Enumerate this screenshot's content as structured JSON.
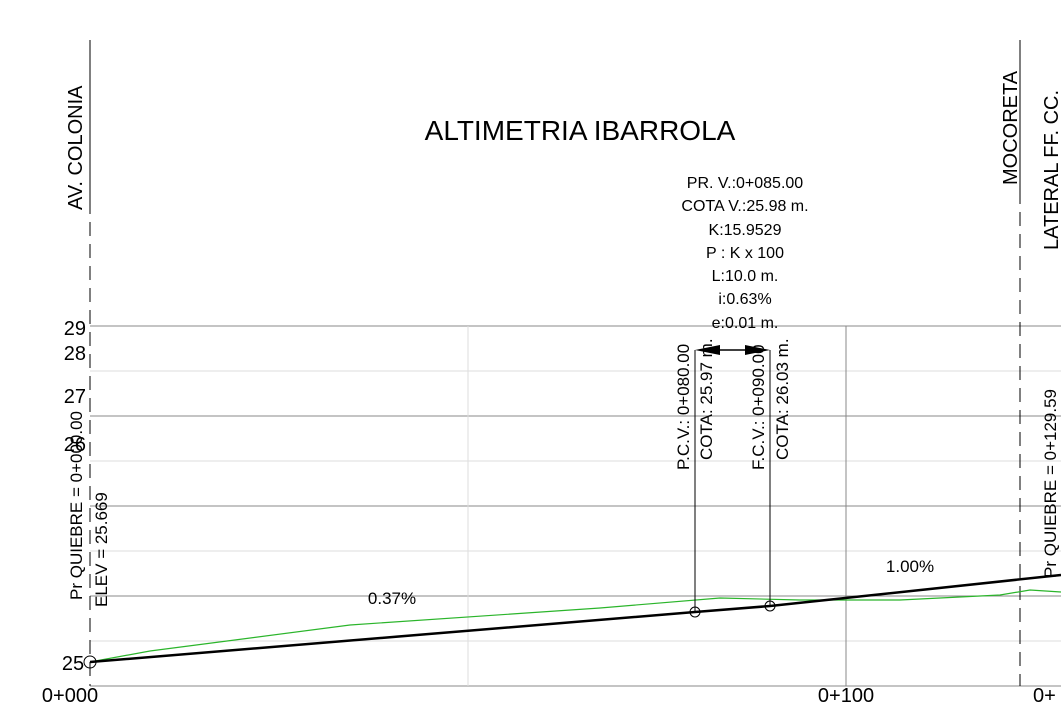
{
  "title": "ALTIMETRIA IBARROLA",
  "streets": [
    "AV. COLONIA",
    "MOCORETA",
    "LATERAL FF. CC."
  ],
  "curve_info": [
    "PR. V.:0+085.00",
    "COTA V.:25.98 m.",
    "K:15.9529",
    "P : K x 100",
    "L:10.0 m.",
    "i:0.63%",
    "e:0.01 m."
  ],
  "elevation_labels": [
    "29",
    "28",
    "27",
    "26",
    "25"
  ],
  "station_labels": [
    "0+000",
    "0+100",
    "0+"
  ],
  "start_point": {
    "station": "Pr QUIEBRE = 0+000.00",
    "elevation": "ELEV =  25.669"
  },
  "end_point": {
    "station": "Pr QUIEBRE = 0+129.59"
  },
  "pcv": {
    "station": "P.C.V.: 0+080.00",
    "elevation": "COTA: 25.97 m."
  },
  "fcv": {
    "station": "F.C.V.: 0+090.00",
    "elevation": "COTA: 26.03 m."
  },
  "slopes": [
    "0.37%",
    "1.00%"
  ]
}
